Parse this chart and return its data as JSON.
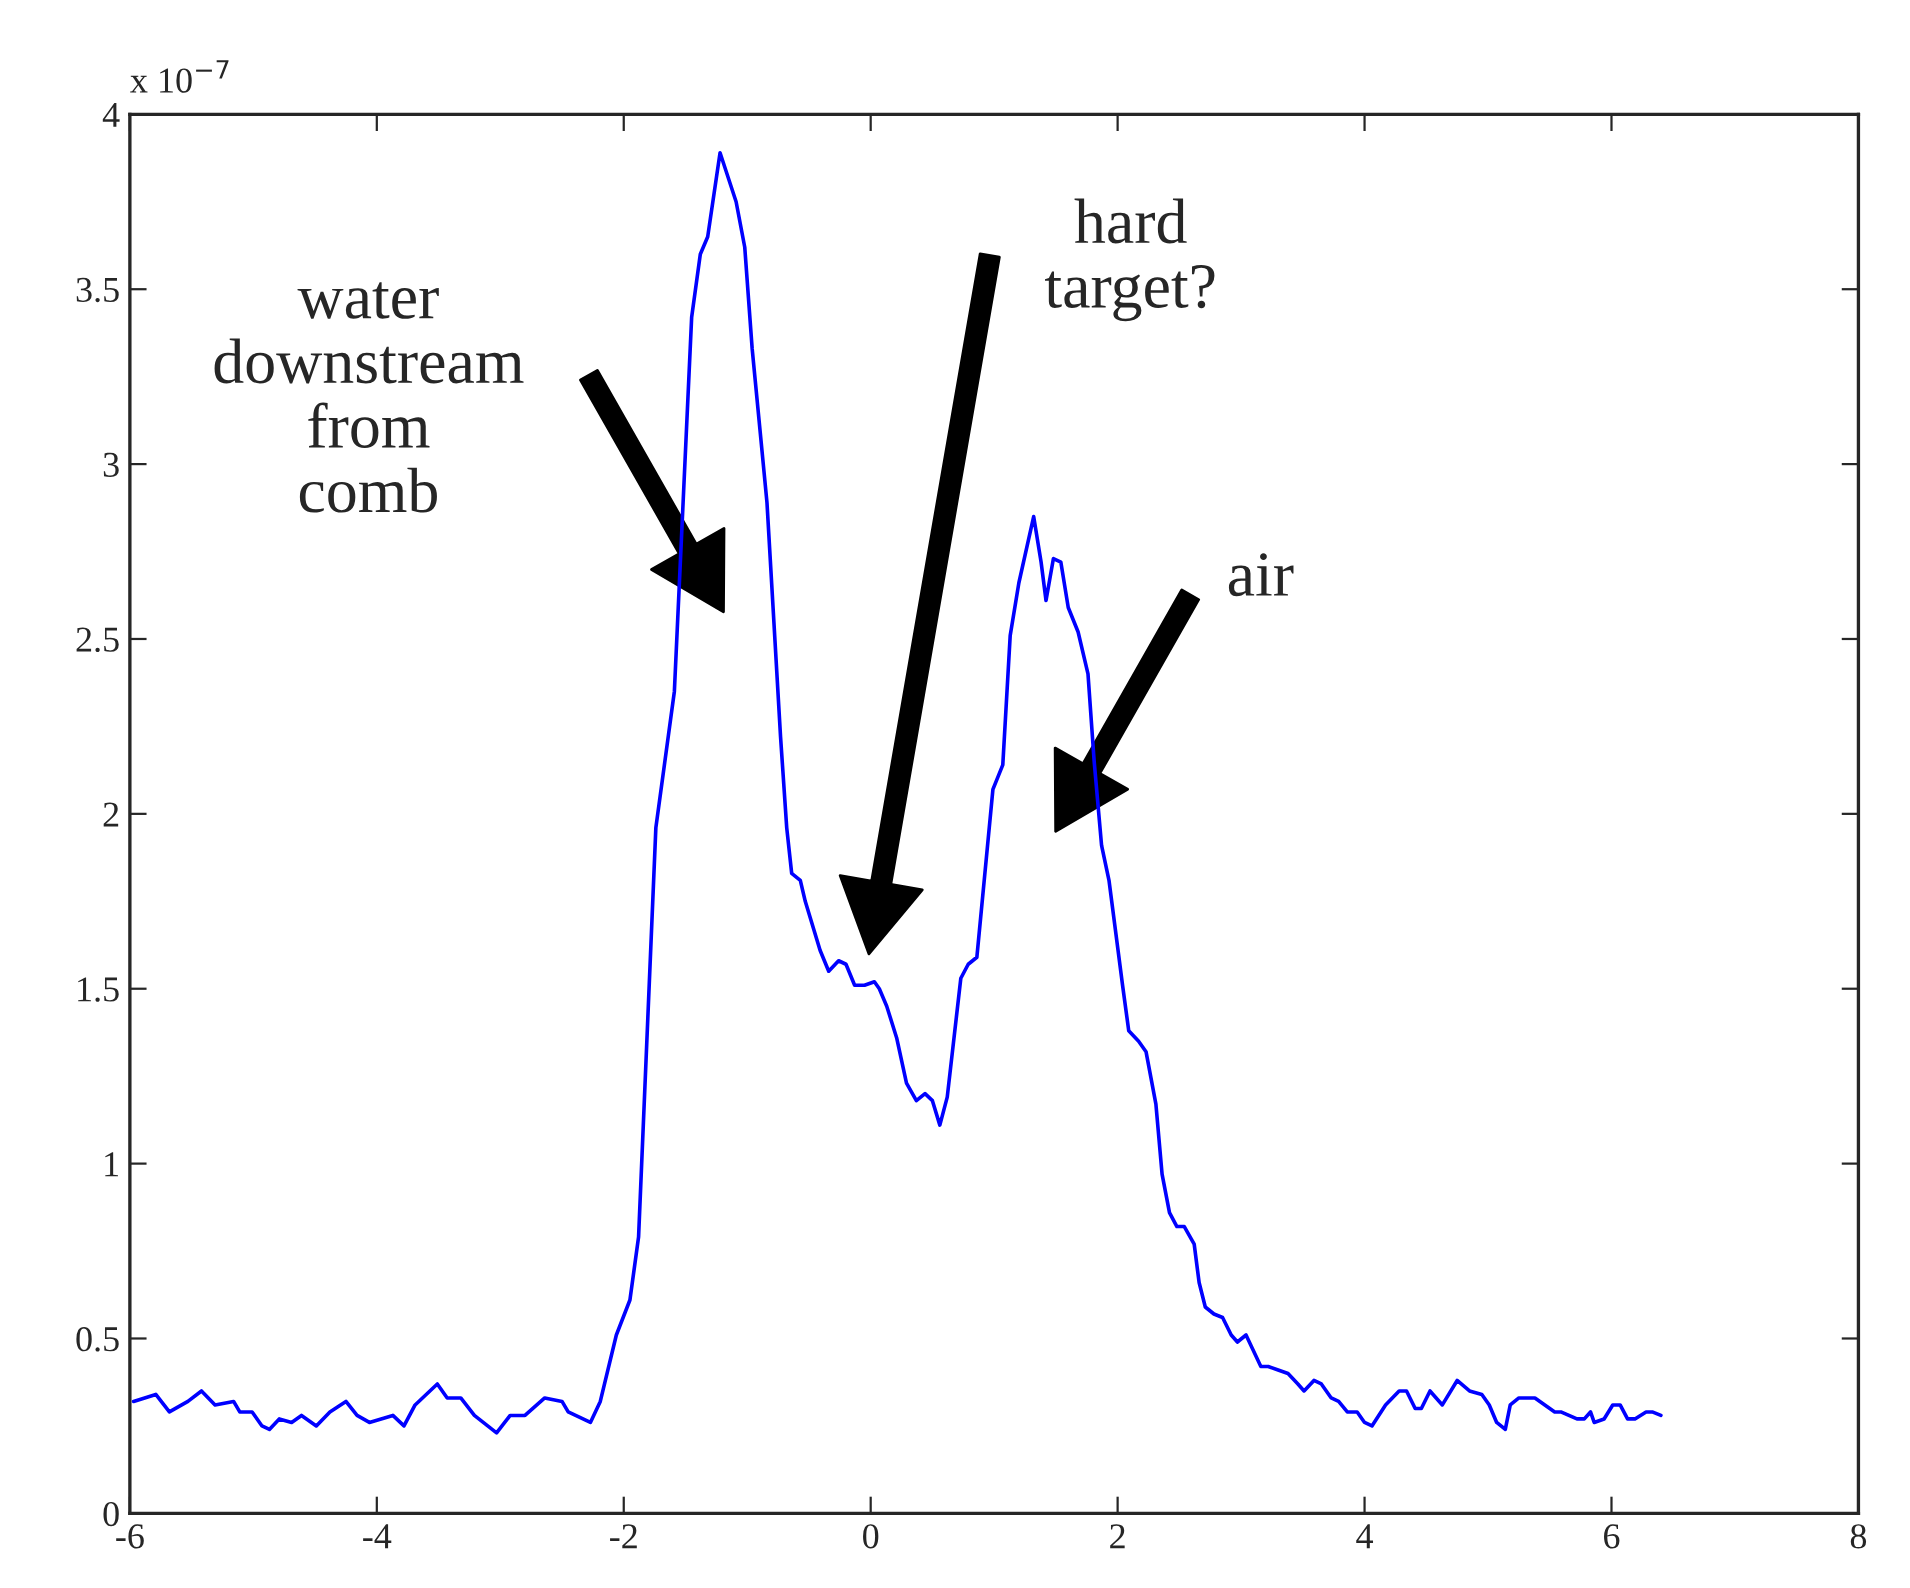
{
  "chart_data": {
    "type": "line",
    "x": [
      -5.97,
      -5.79,
      -5.68,
      -5.53,
      -5.42,
      -5.31,
      -5.16,
      -5.11,
      -5.01,
      -4.93,
      -4.87,
      -4.79,
      -4.69,
      -4.61,
      -4.49,
      -4.38,
      -4.25,
      -4.16,
      -4.06,
      -3.87,
      -3.78,
      -3.69,
      -3.51,
      -3.43,
      -3.32,
      -3.21,
      -3.03,
      -2.92,
      -2.8,
      -2.64,
      -2.5,
      -2.45,
      -2.27,
      -2.19,
      -2.06,
      -1.95,
      -1.88,
      -1.74,
      -1.59,
      -1.45,
      -1.38,
      -1.32,
      -1.22,
      -1.09,
      -1.02,
      -0.96,
      -0.84,
      -0.73,
      -0.68,
      -0.64,
      -0.57,
      -0.53,
      -0.41,
      -0.34,
      -0.26,
      -0.2,
      -0.13,
      -0.05,
      0.03,
      0.07,
      0.13,
      0.21,
      0.29,
      0.37,
      0.44,
      0.5,
      0.56,
      0.62,
      0.73,
      0.79,
      0.86,
      0.99,
      1.07,
      1.13,
      1.2,
      1.32,
      1.38,
      1.42,
      1.48,
      1.54,
      1.6,
      1.68,
      1.76,
      1.81,
      1.87,
      1.93,
      2.04,
      2.09,
      2.17,
      2.23,
      2.31,
      2.36,
      2.42,
      2.48,
      2.54,
      2.62,
      2.66,
      2.71,
      2.78,
      2.85,
      2.92,
      2.97,
      3.04,
      3.16,
      3.22,
      3.3,
      3.38,
      3.46,
      3.51,
      3.59,
      3.65,
      3.73,
      3.79,
      3.86,
      3.94,
      4.0,
      4.06,
      4.17,
      4.28,
      4.34,
      4.41,
      4.46,
      4.53,
      4.63,
      4.75,
      4.85,
      4.95,
      5.01,
      5.07,
      5.14,
      5.18,
      5.25,
      5.38,
      5.46,
      5.54,
      5.59,
      5.72,
      5.78,
      5.83,
      5.86,
      5.94,
      6.01,
      6.07,
      6.13,
      6.19,
      6.28,
      6.33,
      6.4
    ],
    "series": [
      {
        "color": "#0000ff",
        "values": [
          0.32,
          0.34,
          0.29,
          0.32,
          0.35,
          0.31,
          0.32,
          0.29,
          0.29,
          0.25,
          0.24,
          0.27,
          0.26,
          0.28,
          0.25,
          0.29,
          0.32,
          0.28,
          0.26,
          0.28,
          0.25,
          0.31,
          0.37,
          0.33,
          0.33,
          0.28,
          0.23,
          0.28,
          0.28,
          0.33,
          0.32,
          0.29,
          0.26,
          0.32,
          0.51,
          0.61,
          0.79,
          1.96,
          2.35,
          3.42,
          3.6,
          3.65,
          3.89,
          3.75,
          3.62,
          3.33,
          2.89,
          2.22,
          1.96,
          1.83,
          1.81,
          1.75,
          1.61,
          1.55,
          1.58,
          1.57,
          1.51,
          1.51,
          1.52,
          1.5,
          1.45,
          1.36,
          1.23,
          1.18,
          1.2,
          1.18,
          1.11,
          1.19,
          1.53,
          1.57,
          1.59,
          2.07,
          2.14,
          2.51,
          2.66,
          2.85,
          2.72,
          2.61,
          2.73,
          2.72,
          2.59,
          2.52,
          2.4,
          2.15,
          1.91,
          1.81,
          1.51,
          1.38,
          1.35,
          1.32,
          1.17,
          0.97,
          0.86,
          0.82,
          0.82,
          0.77,
          0.66,
          0.59,
          0.57,
          0.56,
          0.51,
          0.49,
          0.51,
          0.42,
          0.42,
          0.41,
          0.4,
          0.37,
          0.35,
          0.38,
          0.37,
          0.33,
          0.32,
          0.29,
          0.29,
          0.26,
          0.25,
          0.31,
          0.35,
          0.35,
          0.3,
          0.3,
          0.35,
          0.31,
          0.38,
          0.35,
          0.34,
          0.31,
          0.26,
          0.24,
          0.31,
          0.33,
          0.33,
          0.31,
          0.29,
          0.29,
          0.27,
          0.27,
          0.29,
          0.26,
          0.27,
          0.31,
          0.31,
          0.27,
          0.27,
          0.29,
          0.29,
          0.28
        ]
      }
    ],
    "xlim": [
      -6,
      8
    ],
    "xticks": [
      -6,
      -4,
      -2,
      0,
      2,
      4,
      6,
      8
    ],
    "ylim": [
      0,
      4
    ],
    "yticks": [
      0,
      0.5,
      1,
      1.5,
      2,
      2.5,
      3,
      3.5,
      4
    ],
    "grid": false,
    "legend": false,
    "marker": "none",
    "line_style": "solid",
    "annotations": [
      "x 10$^{−7}$",
      "water\ndownstream\nfrom\ncomb",
      "hard\ntarget?",
      "air"
    ]
  }
}
